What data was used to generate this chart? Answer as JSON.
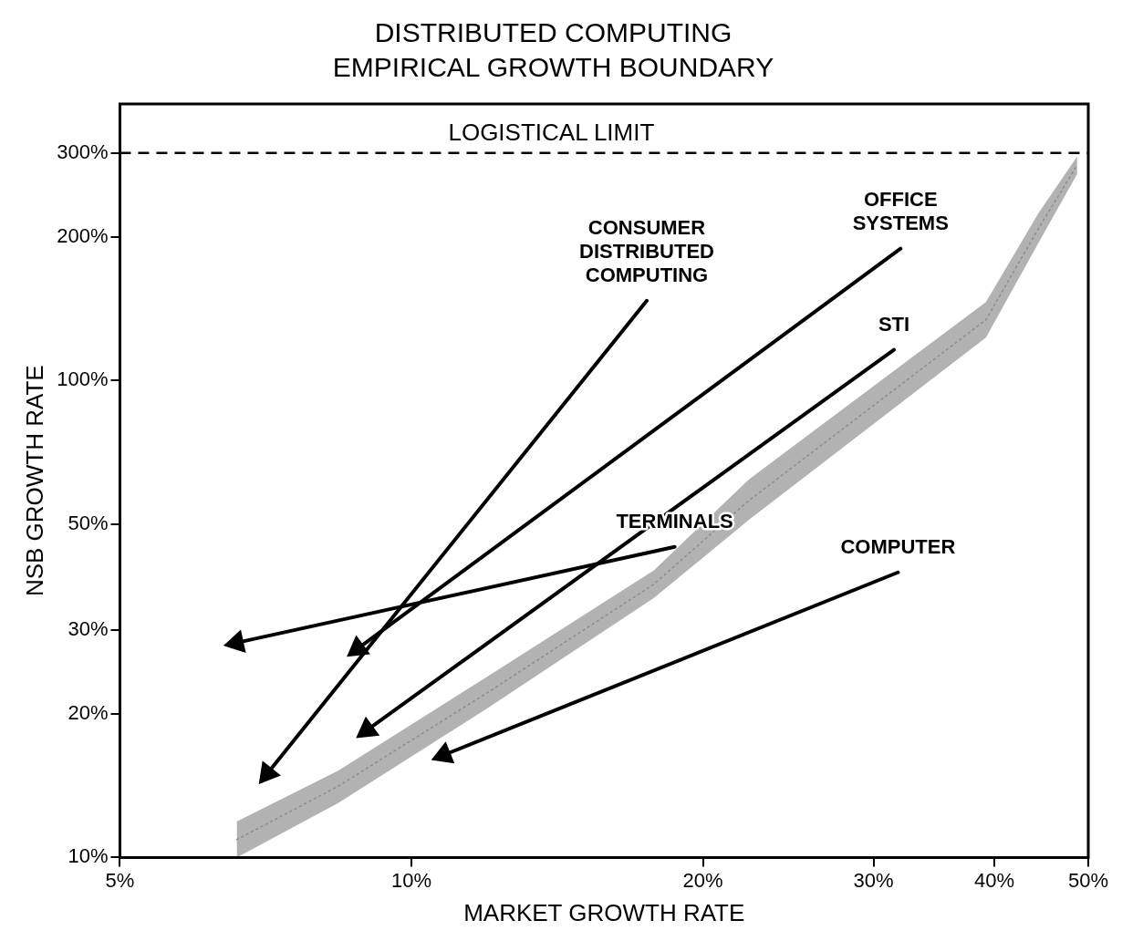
{
  "chart_data": {
    "type": "line",
    "title": "DISTRIBUTED COMPUTING",
    "subtitle": "EMPIRICAL GROWTH BOUNDARY",
    "xlabel": "MARKET GROWTH RATE",
    "ylabel": "NSB GROWTH RATE",
    "log": "xy",
    "xlim": [
      5,
      50
    ],
    "ylim": [
      10,
      380
    ],
    "xticks": [
      {
        "value": 5,
        "label": "5%"
      },
      {
        "value": 10,
        "label": "10%"
      },
      {
        "value": 20,
        "label": "20%"
      },
      {
        "value": 30,
        "label": "30%"
      },
      {
        "value": 40,
        "label": "40%"
      },
      {
        "value": 50,
        "label": "50%"
      }
    ],
    "yticks": [
      {
        "value": 10,
        "label": "10%"
      },
      {
        "value": 20,
        "label": "20%"
      },
      {
        "value": 30,
        "label": "30%"
      },
      {
        "value": 50,
        "label": "50%"
      },
      {
        "value": 100,
        "label": "100%"
      },
      {
        "value": 200,
        "label": "200%"
      },
      {
        "value": 300,
        "label": "300%"
      }
    ],
    "grid": false,
    "legend": false,
    "marker": "none",
    "ref_lines": [
      {
        "axis": "y",
        "value": 300,
        "label": "LOGISTICAL LIMIT",
        "line_style": "dashed"
      }
    ],
    "series": [
      {
        "color": "#8c8c8c",
        "line_style": "dotted",
        "x": [
          6.6,
          8.4,
          12.0,
          17.8,
          22.3,
          39.2,
          44.4,
          48.7
        ],
        "values": [
          10.9,
          14.1,
          22.2,
          37.4,
          56,
          134,
          208,
          283
        ],
        "lower": [
          10,
          13,
          20.6,
          35,
          51,
          123,
          194,
          271
        ],
        "upper": [
          11.9,
          15.2,
          24,
          40,
          62,
          146,
          224,
          295
        ]
      },
      {
        "name": "OFFICE SYSTEMS",
        "color": "#000000",
        "marker": "triangle",
        "x": [
          32.0,
          8.8
        ],
        "values": [
          189,
          27.4
        ]
      },
      {
        "name": "STI",
        "color": "#000000",
        "marker": "triangle",
        "x": [
          31.5,
          9.0
        ],
        "values": [
          116,
          18.5
        ]
      },
      {
        "name": "COMPUTER",
        "color": "#000000",
        "marker": "triangle",
        "x": [
          31.8,
          10.8
        ],
        "values": [
          39.6,
          16.4
        ]
      },
      {
        "name": "TERMINALS",
        "color": "#000000",
        "marker": "triangle",
        "x": [
          18.7,
          6.6
        ],
        "values": [
          44.8,
          28.2
        ]
      },
      {
        "name": "CONSUMER DISTRIBUTED COMPUTING",
        "color": "#000000",
        "marker": "triangle",
        "x": [
          17.5,
          7.1
        ],
        "values": [
          147,
          15.0
        ]
      }
    ]
  }
}
